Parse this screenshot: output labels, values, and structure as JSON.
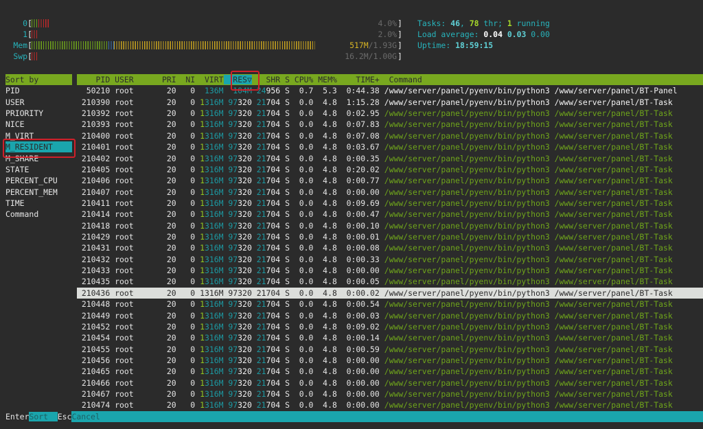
{
  "meters": {
    "cpu": [
      {
        "label": "0",
        "value": "4.0%",
        "segments": [
          {
            "color": "#6fa51b",
            "bars": 2
          },
          {
            "color": "#c0282a",
            "bars": 3
          }
        ]
      },
      {
        "label": "1",
        "value": "2.0%",
        "segments": [
          {
            "color": "#c0282a",
            "bars": 2
          }
        ]
      }
    ],
    "mem": {
      "label": "Mem",
      "used": "517M",
      "total": "/1.93G",
      "fractions": {
        "used": 0.235,
        "buffers": 0.02,
        "cache": 0.62
      },
      "colors": {
        "used": "#6fa51b",
        "buffers": "#3a6fb0",
        "cache": "#c9a41f"
      }
    },
    "swp": {
      "label": "Swp",
      "value": "16.2M/1.00G",
      "segments": [
        {
          "color": "#c0282a",
          "bars": 2
        }
      ]
    }
  },
  "summary": {
    "tasks_label": "Tasks: ",
    "tasks": "46",
    "sep": ", ",
    "threads": "78",
    "thr_label": " thr; ",
    "running": "1",
    "running_label": " running",
    "load_label": "Load average: ",
    "load1": "0.04",
    "load5": "0.03",
    "load15": "0.00",
    "uptime_label": "Uptime: ",
    "uptime": "18:59:15"
  },
  "sidebar": {
    "title": "Sort by",
    "items": [
      "PID",
      "USER",
      "PRIORITY",
      "NICE",
      "M_VIRT",
      "M_RESIDENT",
      "M_SHARE",
      "STATE",
      "PERCENT_CPU",
      "PERCENT_MEM",
      "TIME",
      "Command"
    ],
    "active_index": 5
  },
  "table": {
    "columns": {
      "pid": "PID",
      "user": "USER",
      "pri": "PRI",
      "ni": "NI",
      "virt": "VIRT",
      "res": "RES▽",
      "shr": "SHR",
      "s": "S",
      "cpu": "CPU%",
      "mem": "MEM%",
      "time": "TIME+",
      "command": "Command"
    },
    "sorted_column": "res",
    "selected_pid": "210436",
    "rows": [
      {
        "pid": "50210",
        "user": "root",
        "pri": "20",
        "ni": "0",
        "virt": "136M",
        "res": "104M",
        "shr": "24956",
        "s": "S",
        "cpu": "0.7",
        "mem": "5.3",
        "time": "0:44.38",
        "command": "/www/server/panel/pyenv/bin/python3 /www/server/panel/BT-Panel",
        "thread": false
      },
      {
        "pid": "210390",
        "user": "root",
        "pri": "20",
        "ni": "0",
        "virt": "1316M",
        "res": "97320",
        "shr": "21704",
        "s": "S",
        "cpu": "0.0",
        "mem": "4.8",
        "time": "1:15.28",
        "command": "/www/server/panel/pyenv/bin/python3 /www/server/panel/BT-Task",
        "thread": false
      },
      {
        "pid": "210392",
        "user": "root",
        "pri": "20",
        "ni": "0",
        "virt": "1316M",
        "res": "97320",
        "shr": "21704",
        "s": "S",
        "cpu": "0.0",
        "mem": "4.8",
        "time": "0:02.95",
        "command": "/www/server/panel/pyenv/bin/python3 /www/server/panel/BT-Task",
        "thread": true
      },
      {
        "pid": "210393",
        "user": "root",
        "pri": "20",
        "ni": "0",
        "virt": "1316M",
        "res": "97320",
        "shr": "21704",
        "s": "S",
        "cpu": "0.0",
        "mem": "4.8",
        "time": "0:07.83",
        "command": "/www/server/panel/pyenv/bin/python3 /www/server/panel/BT-Task",
        "thread": true
      },
      {
        "pid": "210400",
        "user": "root",
        "pri": "20",
        "ni": "0",
        "virt": "1316M",
        "res": "97320",
        "shr": "21704",
        "s": "S",
        "cpu": "0.0",
        "mem": "4.8",
        "time": "0:07.08",
        "command": "/www/server/panel/pyenv/bin/python3 /www/server/panel/BT-Task",
        "thread": true
      },
      {
        "pid": "210401",
        "user": "root",
        "pri": "20",
        "ni": "0",
        "virt": "1316M",
        "res": "97320",
        "shr": "21704",
        "s": "S",
        "cpu": "0.0",
        "mem": "4.8",
        "time": "0:03.67",
        "command": "/www/server/panel/pyenv/bin/python3 /www/server/panel/BT-Task",
        "thread": true
      },
      {
        "pid": "210402",
        "user": "root",
        "pri": "20",
        "ni": "0",
        "virt": "1316M",
        "res": "97320",
        "shr": "21704",
        "s": "S",
        "cpu": "0.0",
        "mem": "4.8",
        "time": "0:00.35",
        "command": "/www/server/panel/pyenv/bin/python3 /www/server/panel/BT-Task",
        "thread": true
      },
      {
        "pid": "210405",
        "user": "root",
        "pri": "20",
        "ni": "0",
        "virt": "1316M",
        "res": "97320",
        "shr": "21704",
        "s": "S",
        "cpu": "0.0",
        "mem": "4.8",
        "time": "0:20.02",
        "command": "/www/server/panel/pyenv/bin/python3 /www/server/panel/BT-Task",
        "thread": true
      },
      {
        "pid": "210406",
        "user": "root",
        "pri": "20",
        "ni": "0",
        "virt": "1316M",
        "res": "97320",
        "shr": "21704",
        "s": "S",
        "cpu": "0.0",
        "mem": "4.8",
        "time": "0:00.77",
        "command": "/www/server/panel/pyenv/bin/python3 /www/server/panel/BT-Task",
        "thread": true
      },
      {
        "pid": "210407",
        "user": "root",
        "pri": "20",
        "ni": "0",
        "virt": "1316M",
        "res": "97320",
        "shr": "21704",
        "s": "S",
        "cpu": "0.0",
        "mem": "4.8",
        "time": "0:00.00",
        "command": "/www/server/panel/pyenv/bin/python3 /www/server/panel/BT-Task",
        "thread": true
      },
      {
        "pid": "210411",
        "user": "root",
        "pri": "20",
        "ni": "0",
        "virt": "1316M",
        "res": "97320",
        "shr": "21704",
        "s": "S",
        "cpu": "0.0",
        "mem": "4.8",
        "time": "0:09.69",
        "command": "/www/server/panel/pyenv/bin/python3 /www/server/panel/BT-Task",
        "thread": true
      },
      {
        "pid": "210414",
        "user": "root",
        "pri": "20",
        "ni": "0",
        "virt": "1316M",
        "res": "97320",
        "shr": "21704",
        "s": "S",
        "cpu": "0.0",
        "mem": "4.8",
        "time": "0:00.47",
        "command": "/www/server/panel/pyenv/bin/python3 /www/server/panel/BT-Task",
        "thread": true
      },
      {
        "pid": "210418",
        "user": "root",
        "pri": "20",
        "ni": "0",
        "virt": "1316M",
        "res": "97320",
        "shr": "21704",
        "s": "S",
        "cpu": "0.0",
        "mem": "4.8",
        "time": "0:00.10",
        "command": "/www/server/panel/pyenv/bin/python3 /www/server/panel/BT-Task",
        "thread": true
      },
      {
        "pid": "210429",
        "user": "root",
        "pri": "20",
        "ni": "0",
        "virt": "1316M",
        "res": "97320",
        "shr": "21704",
        "s": "S",
        "cpu": "0.0",
        "mem": "4.8",
        "time": "0:00.01",
        "command": "/www/server/panel/pyenv/bin/python3 /www/server/panel/BT-Task",
        "thread": true
      },
      {
        "pid": "210431",
        "user": "root",
        "pri": "20",
        "ni": "0",
        "virt": "1316M",
        "res": "97320",
        "shr": "21704",
        "s": "S",
        "cpu": "0.0",
        "mem": "4.8",
        "time": "0:00.08",
        "command": "/www/server/panel/pyenv/bin/python3 /www/server/panel/BT-Task",
        "thread": true
      },
      {
        "pid": "210432",
        "user": "root",
        "pri": "20",
        "ni": "0",
        "virt": "1316M",
        "res": "97320",
        "shr": "21704",
        "s": "S",
        "cpu": "0.0",
        "mem": "4.8",
        "time": "0:00.33",
        "command": "/www/server/panel/pyenv/bin/python3 /www/server/panel/BT-Task",
        "thread": true
      },
      {
        "pid": "210433",
        "user": "root",
        "pri": "20",
        "ni": "0",
        "virt": "1316M",
        "res": "97320",
        "shr": "21704",
        "s": "S",
        "cpu": "0.0",
        "mem": "4.8",
        "time": "0:00.00",
        "command": "/www/server/panel/pyenv/bin/python3 /www/server/panel/BT-Task",
        "thread": true
      },
      {
        "pid": "210435",
        "user": "root",
        "pri": "20",
        "ni": "0",
        "virt": "1316M",
        "res": "97320",
        "shr": "21704",
        "s": "S",
        "cpu": "0.0",
        "mem": "4.8",
        "time": "0:00.05",
        "command": "/www/server/panel/pyenv/bin/python3 /www/server/panel/BT-Task",
        "thread": true
      },
      {
        "pid": "210436",
        "user": "root",
        "pri": "20",
        "ni": "0",
        "virt": "1316M",
        "res": "97320",
        "shr": "21704",
        "s": "S",
        "cpu": "0.0",
        "mem": "4.8",
        "time": "0:00.02",
        "command": "/www/server/panel/pyenv/bin/python3 /www/server/panel/BT-Task",
        "thread": true
      },
      {
        "pid": "210448",
        "user": "root",
        "pri": "20",
        "ni": "0",
        "virt": "1316M",
        "res": "97320",
        "shr": "21704",
        "s": "S",
        "cpu": "0.0",
        "mem": "4.8",
        "time": "0:00.54",
        "command": "/www/server/panel/pyenv/bin/python3 /www/server/panel/BT-Task",
        "thread": true
      },
      {
        "pid": "210449",
        "user": "root",
        "pri": "20",
        "ni": "0",
        "virt": "1316M",
        "res": "97320",
        "shr": "21704",
        "s": "S",
        "cpu": "0.0",
        "mem": "4.8",
        "time": "0:00.03",
        "command": "/www/server/panel/pyenv/bin/python3 /www/server/panel/BT-Task",
        "thread": true
      },
      {
        "pid": "210452",
        "user": "root",
        "pri": "20",
        "ni": "0",
        "virt": "1316M",
        "res": "97320",
        "shr": "21704",
        "s": "S",
        "cpu": "0.0",
        "mem": "4.8",
        "time": "0:09.02",
        "command": "/www/server/panel/pyenv/bin/python3 /www/server/panel/BT-Task",
        "thread": true
      },
      {
        "pid": "210454",
        "user": "root",
        "pri": "20",
        "ni": "0",
        "virt": "1316M",
        "res": "97320",
        "shr": "21704",
        "s": "S",
        "cpu": "0.0",
        "mem": "4.8",
        "time": "0:00.14",
        "command": "/www/server/panel/pyenv/bin/python3 /www/server/panel/BT-Task",
        "thread": true
      },
      {
        "pid": "210455",
        "user": "root",
        "pri": "20",
        "ni": "0",
        "virt": "1316M",
        "res": "97320",
        "shr": "21704",
        "s": "S",
        "cpu": "0.0",
        "mem": "4.8",
        "time": "0:00.59",
        "command": "/www/server/panel/pyenv/bin/python3 /www/server/panel/BT-Task",
        "thread": true
      },
      {
        "pid": "210456",
        "user": "root",
        "pri": "20",
        "ni": "0",
        "virt": "1316M",
        "res": "97320",
        "shr": "21704",
        "s": "S",
        "cpu": "0.0",
        "mem": "4.8",
        "time": "0:00.00",
        "command": "/www/server/panel/pyenv/bin/python3 /www/server/panel/BT-Task",
        "thread": true
      },
      {
        "pid": "210465",
        "user": "root",
        "pri": "20",
        "ni": "0",
        "virt": "1316M",
        "res": "97320",
        "shr": "21704",
        "s": "S",
        "cpu": "0.0",
        "mem": "4.8",
        "time": "0:00.00",
        "command": "/www/server/panel/pyenv/bin/python3 /www/server/panel/BT-Task",
        "thread": true
      },
      {
        "pid": "210466",
        "user": "root",
        "pri": "20",
        "ni": "0",
        "virt": "1316M",
        "res": "97320",
        "shr": "21704",
        "s": "S",
        "cpu": "0.0",
        "mem": "4.8",
        "time": "0:00.00",
        "command": "/www/server/panel/pyenv/bin/python3 /www/server/panel/BT-Task",
        "thread": true
      },
      {
        "pid": "210467",
        "user": "root",
        "pri": "20",
        "ni": "0",
        "virt": "1316M",
        "res": "97320",
        "shr": "21704",
        "s": "S",
        "cpu": "0.0",
        "mem": "4.8",
        "time": "0:00.00",
        "command": "/www/server/panel/pyenv/bin/python3 /www/server/panel/BT-Task",
        "thread": true
      },
      {
        "pid": "210474",
        "user": "root",
        "pri": "20",
        "ni": "0",
        "virt": "1316M",
        "res": "97320",
        "shr": "21704",
        "s": "S",
        "cpu": "0.0",
        "mem": "4.8",
        "time": "0:00.00",
        "command": "/www/server/panel/pyenv/bin/python3 /www/server/panel/BT-Task",
        "thread": true
      }
    ]
  },
  "footer": {
    "keys": [
      {
        "key": "Enter",
        "label": "Sort  "
      },
      {
        "key": "Esc",
        "label": "Cancel"
      }
    ]
  },
  "colors": {
    "header_green": "#78a81f",
    "accent_cyan": "#1aa5ad",
    "thread_green": "#6fa51b",
    "highlight": "#d0202a"
  }
}
